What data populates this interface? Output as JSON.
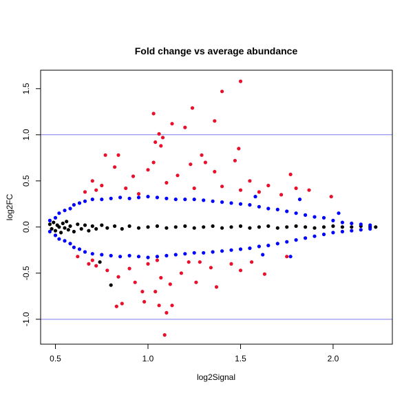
{
  "chart_data": {
    "type": "scatter",
    "title": "Fold change vs average abundance",
    "xlabel": "log2Signal",
    "ylabel": "log2FC",
    "xlim": [
      0.42,
      2.32
    ],
    "ylim": [
      -1.27,
      1.7
    ],
    "x_ticks": [
      0.5,
      1.0,
      1.5,
      2.0
    ],
    "x_tick_labels": [
      "0.5",
      "1.0",
      "1.5",
      "2.0"
    ],
    "y_ticks": [
      -1.0,
      -0.5,
      0.0,
      0.5,
      1.0,
      1.5
    ],
    "y_tick_labels": [
      "-1.0",
      "-0.5",
      "0.0",
      "0.5",
      "1.0",
      "1.5"
    ],
    "reference_lines": [
      1.0,
      -1.0
    ],
    "reference_line_color": "#7b7bf0",
    "colors": {
      "black": "#000000",
      "blue": "#0000ff",
      "red": "#e8102a"
    },
    "series": [
      {
        "color": "black",
        "points": [
          [
            0.47,
            0.03
          ],
          [
            0.48,
            -0.02
          ],
          [
            0.49,
            0.05
          ],
          [
            0.5,
            -0.04
          ],
          [
            0.51,
            0.02
          ],
          [
            0.52,
            0.0
          ],
          [
            0.53,
            -0.06
          ],
          [
            0.54,
            0.04
          ],
          [
            0.55,
            -0.01
          ],
          [
            0.56,
            0.06
          ],
          [
            0.57,
            -0.03
          ],
          [
            0.58,
            0.01
          ],
          [
            0.6,
            -0.05
          ],
          [
            0.62,
            0.03
          ],
          [
            0.64,
            -0.02
          ],
          [
            0.66,
            0.02
          ],
          [
            0.68,
            -0.04
          ],
          [
            0.7,
            0.01
          ],
          [
            0.72,
            -0.02
          ],
          [
            0.75,
            0.02
          ],
          [
            0.78,
            -0.01
          ],
          [
            0.82,
            0.01
          ],
          [
            0.86,
            -0.02
          ],
          [
            0.9,
            0.01
          ],
          [
            0.95,
            -0.01
          ],
          [
            1.0,
            0.0
          ],
          [
            1.05,
            0.01
          ],
          [
            1.1,
            -0.01
          ],
          [
            1.15,
            0.0
          ],
          [
            1.2,
            0.01
          ],
          [
            1.25,
            -0.01
          ],
          [
            1.3,
            0.0
          ],
          [
            1.35,
            0.01
          ],
          [
            1.4,
            -0.01
          ],
          [
            1.45,
            0.0
          ],
          [
            1.5,
            0.01
          ],
          [
            1.55,
            -0.01
          ],
          [
            1.6,
            0.0
          ],
          [
            1.65,
            0.01
          ],
          [
            1.7,
            -0.01
          ],
          [
            1.75,
            0.0
          ],
          [
            1.8,
            0.01
          ],
          [
            1.85,
            0.0
          ],
          [
            1.9,
            -0.01
          ],
          [
            1.95,
            0.0
          ],
          [
            2.0,
            0.01
          ],
          [
            2.05,
            0.0
          ],
          [
            2.1,
            0.0
          ],
          [
            2.15,
            0.01
          ],
          [
            2.2,
            0.0
          ],
          [
            2.23,
            0.0
          ],
          [
            0.74,
            -0.38
          ],
          [
            0.8,
            -0.63
          ]
        ]
      },
      {
        "color": "blue",
        "points": [
          [
            0.47,
            0.07
          ],
          [
            0.5,
            0.1
          ],
          [
            0.52,
            0.15
          ],
          [
            0.55,
            0.18
          ],
          [
            0.58,
            0.2
          ],
          [
            0.6,
            0.24
          ],
          [
            0.63,
            0.26
          ],
          [
            0.66,
            0.28
          ],
          [
            0.7,
            0.3
          ],
          [
            0.75,
            0.3
          ],
          [
            0.8,
            0.31
          ],
          [
            0.85,
            0.32
          ],
          [
            0.9,
            0.31
          ],
          [
            0.95,
            0.32
          ],
          [
            1.0,
            0.33
          ],
          [
            1.05,
            0.32
          ],
          [
            1.1,
            0.31
          ],
          [
            1.15,
            0.3
          ],
          [
            1.2,
            0.3
          ],
          [
            1.25,
            0.3
          ],
          [
            1.3,
            0.29
          ],
          [
            1.35,
            0.28
          ],
          [
            1.4,
            0.27
          ],
          [
            1.45,
            0.26
          ],
          [
            1.5,
            0.25
          ],
          [
            1.55,
            0.24
          ],
          [
            1.6,
            0.22
          ],
          [
            1.65,
            0.2
          ],
          [
            1.7,
            0.19
          ],
          [
            1.75,
            0.17
          ],
          [
            1.8,
            0.15
          ],
          [
            1.85,
            0.13
          ],
          [
            1.9,
            0.11
          ],
          [
            1.95,
            0.1
          ],
          [
            2.0,
            0.07
          ],
          [
            2.05,
            0.05
          ],
          [
            2.1,
            0.04
          ],
          [
            2.15,
            0.03
          ],
          [
            2.2,
            0.02
          ],
          [
            0.47,
            -0.05
          ],
          [
            0.5,
            -0.09
          ],
          [
            0.52,
            -0.13
          ],
          [
            0.55,
            -0.15
          ],
          [
            0.58,
            -0.18
          ],
          [
            0.6,
            -0.22
          ],
          [
            0.63,
            -0.24
          ],
          [
            0.66,
            -0.27
          ],
          [
            0.7,
            -0.29
          ],
          [
            0.75,
            -0.3
          ],
          [
            0.8,
            -0.31
          ],
          [
            0.85,
            -0.32
          ],
          [
            0.9,
            -0.31
          ],
          [
            0.95,
            -0.32
          ],
          [
            1.0,
            -0.33
          ],
          [
            1.05,
            -0.32
          ],
          [
            1.1,
            -0.31
          ],
          [
            1.15,
            -0.3
          ],
          [
            1.2,
            -0.29
          ],
          [
            1.25,
            -0.28
          ],
          [
            1.3,
            -0.28
          ],
          [
            1.35,
            -0.27
          ],
          [
            1.4,
            -0.26
          ],
          [
            1.45,
            -0.25
          ],
          [
            1.5,
            -0.24
          ],
          [
            1.55,
            -0.23
          ],
          [
            1.6,
            -0.21
          ],
          [
            1.65,
            -0.2
          ],
          [
            1.7,
            -0.18
          ],
          [
            1.75,
            -0.16
          ],
          [
            1.8,
            -0.14
          ],
          [
            1.85,
            -0.12
          ],
          [
            1.9,
            -0.1
          ],
          [
            1.95,
            -0.08
          ],
          [
            2.0,
            -0.06
          ],
          [
            2.05,
            -0.05
          ],
          [
            2.1,
            -0.04
          ],
          [
            2.15,
            -0.03
          ],
          [
            2.2,
            -0.02
          ],
          [
            1.82,
            0.3
          ],
          [
            1.77,
            -0.32
          ],
          [
            1.58,
            0.33
          ],
          [
            2.03,
            0.15
          ],
          [
            1.62,
            -0.3
          ]
        ]
      },
      {
        "color": "red",
        "points": [
          [
            1.5,
            1.58
          ],
          [
            1.4,
            1.47
          ],
          [
            1.24,
            1.29
          ],
          [
            1.03,
            1.23
          ],
          [
            1.36,
            1.15
          ],
          [
            1.13,
            1.12
          ],
          [
            1.2,
            1.08
          ],
          [
            1.06,
            1.01
          ],
          [
            1.08,
            0.97
          ],
          [
            1.04,
            0.92
          ],
          [
            1.07,
            0.88
          ],
          [
            1.49,
            0.85
          ],
          [
            0.77,
            0.78
          ],
          [
            0.84,
            0.78
          ],
          [
            1.29,
            0.78
          ],
          [
            1.47,
            0.72
          ],
          [
            0.82,
            0.65
          ],
          [
            1.03,
            0.7
          ],
          [
            1.23,
            0.68
          ],
          [
            1.31,
            0.7
          ],
          [
            1.0,
            0.62
          ],
          [
            1.36,
            0.6
          ],
          [
            1.77,
            0.57
          ],
          [
            0.92,
            0.55
          ],
          [
            1.16,
            0.56
          ],
          [
            1.55,
            0.5
          ],
          [
            0.7,
            0.5
          ],
          [
            0.75,
            0.45
          ],
          [
            1.1,
            0.48
          ],
          [
            1.4,
            0.44
          ],
          [
            1.65,
            0.45
          ],
          [
            1.8,
            0.42
          ],
          [
            0.88,
            0.42
          ],
          [
            1.25,
            0.42
          ],
          [
            1.6,
            0.38
          ],
          [
            0.66,
            0.38
          ],
          [
            0.95,
            0.36
          ],
          [
            1.72,
            0.35
          ],
          [
            1.99,
            0.33
          ],
          [
            1.87,
            0.4
          ],
          [
            0.72,
            0.4
          ],
          [
            1.5,
            0.4
          ],
          [
            1.09,
            -1.17
          ],
          [
            1.1,
            -0.93
          ],
          [
            1.13,
            -0.85
          ],
          [
            0.83,
            -0.86
          ],
          [
            1.06,
            -0.85
          ],
          [
            0.86,
            -0.83
          ],
          [
            0.98,
            -0.81
          ],
          [
            0.97,
            -0.7
          ],
          [
            1.04,
            -0.7
          ],
          [
            1.12,
            -0.62
          ],
          [
            1.37,
            -0.65
          ],
          [
            0.93,
            -0.6
          ],
          [
            1.26,
            -0.6
          ],
          [
            0.84,
            -0.54
          ],
          [
            1.07,
            -0.55
          ],
          [
            1.63,
            -0.51
          ],
          [
            0.78,
            -0.47
          ],
          [
            1.18,
            -0.5
          ],
          [
            1.5,
            -0.47
          ],
          [
            0.72,
            -0.42
          ],
          [
            0.9,
            -0.45
          ],
          [
            1.34,
            -0.44
          ],
          [
            0.68,
            -0.4
          ],
          [
            1.0,
            -0.4
          ],
          [
            1.22,
            -0.38
          ],
          [
            1.45,
            -0.4
          ],
          [
            1.56,
            -0.38
          ],
          [
            0.7,
            -0.36
          ],
          [
            1.28,
            -0.38
          ],
          [
            1.75,
            -0.32
          ],
          [
            1.05,
            -0.36
          ],
          [
            0.62,
            -0.32
          ]
        ]
      }
    ]
  }
}
